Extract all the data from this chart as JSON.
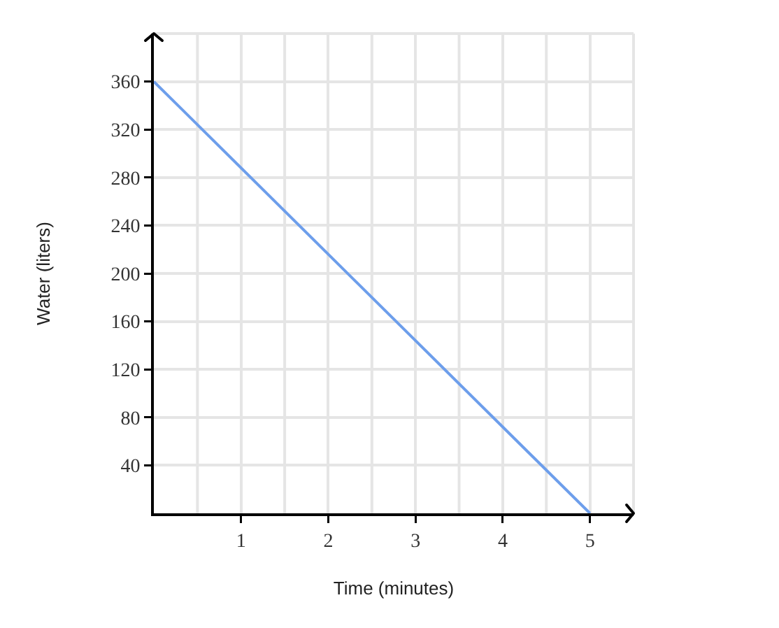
{
  "chart_data": {
    "type": "line",
    "xlabel": "Time (minutes)",
    "ylabel": "Water (liters)",
    "x": [
      0,
      5
    ],
    "values": [
      360,
      0
    ],
    "color": "#6d9eeb",
    "line_style": "solid",
    "xlim": [
      0,
      5.5
    ],
    "ylim": [
      0,
      400
    ],
    "xticks": [
      {
        "value": 0.5,
        "label": null
      },
      1,
      {
        "value": 1.5,
        "label": null
      },
      2,
      {
        "value": 2.5,
        "label": null
      },
      3,
      {
        "value": 3.5,
        "label": null
      },
      4,
      {
        "value": 4.5,
        "label": null
      },
      5,
      {
        "value": 5.5,
        "label": null
      }
    ],
    "yticks": [
      40,
      80,
      120,
      160,
      200,
      240,
      280,
      320,
      360,
      {
        "value": 400,
        "label": null
      }
    ],
    "grid": true
  }
}
